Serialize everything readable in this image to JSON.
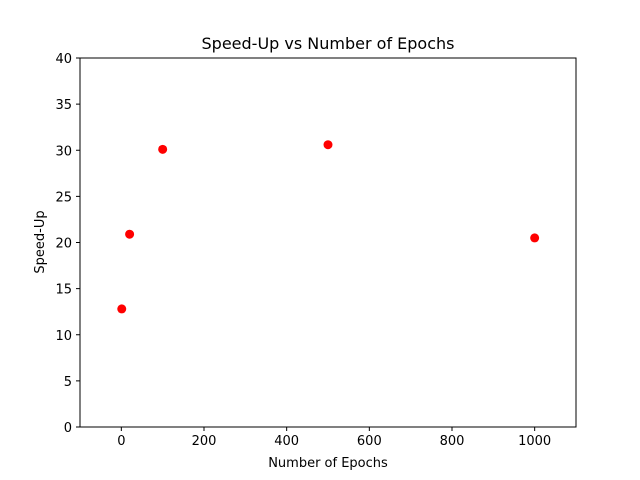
{
  "chart_data": {
    "type": "scatter",
    "title": "Speed-Up vs Number of Epochs",
    "xlabel": "Number of Epochs",
    "ylabel": "Speed-Up",
    "xlim": [
      -100,
      1100
    ],
    "ylim": [
      0,
      40
    ],
    "xticks": [
      0,
      200,
      400,
      600,
      800,
      1000
    ],
    "yticks": [
      0,
      5,
      10,
      15,
      20,
      25,
      30,
      35,
      40
    ],
    "grid": false,
    "marker_color": "#ff0000",
    "points": [
      {
        "x": 1,
        "y": 12.8
      },
      {
        "x": 20,
        "y": 20.9
      },
      {
        "x": 100,
        "y": 30.1
      },
      {
        "x": 500,
        "y": 30.6
      },
      {
        "x": 1000,
        "y": 20.5
      }
    ]
  }
}
